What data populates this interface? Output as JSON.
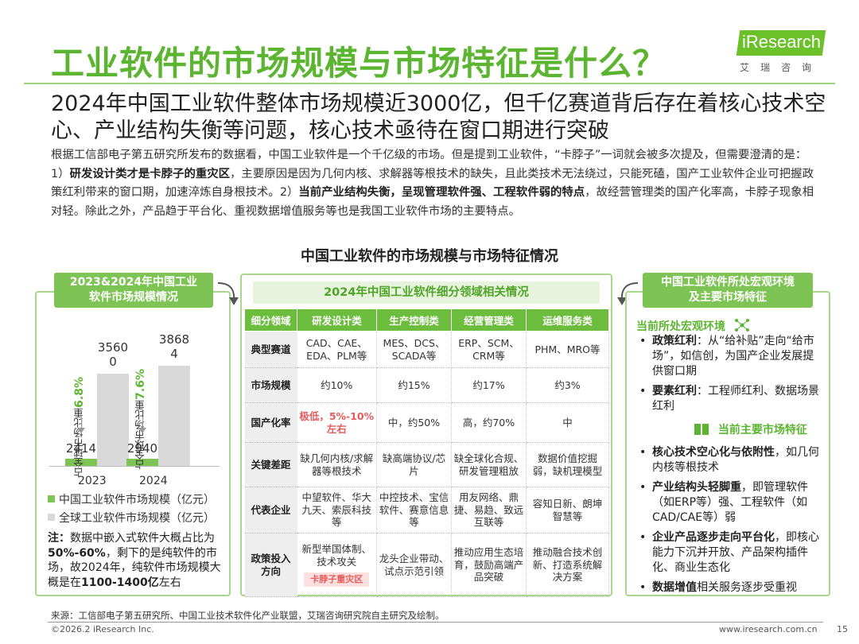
{
  "title": "工业软件的市场规模与市场特征是什么？",
  "logo": {
    "text": "iResearch",
    "sub": "艾瑞咨询"
  },
  "headline": "2024年中国工业软件整体市场规模近3000亿，但千亿赛道背后存在着核心技术空心、产业结构失衡等问题，核心技术亟待在窗口期进行突破",
  "intro": {
    "p1": "根据工信部电子第五研究所发布的数据看，中国工业软件是一个千亿级的市场。但是提到工业软件，“卡脖子”一词就会被多次提及，但需要澄清的是：1）",
    "b1": "研发设计类才是卡脖子的重灾区",
    "p2": "，主要原因是因为几何内核、求解器等根技术的缺失，且此类技术无法绕过，只能死磕，国产工业软件企业可把握政策红利带来的窗口期，加速淬炼自身根技术。2）",
    "b2": "当前产业结构失衡，呈现管理软件强、工程软件弱的特点",
    "p3": "，故经营管理类的国产化率高，卡脖子现象相对轻。除此之外，产品趋于平台化、重视数据增值服务等也是我国工业软件市场的主要特点。"
  },
  "chart_title": "中国工业软件的市场规模与市场特征情况",
  "left_panel": {
    "header_line1": "2023&2024年中国工业",
    "header_line2": "软件市场规模情况",
    "note_label": "注：",
    "note_text1": "数据中嵌入式软件大概占比为",
    "note_bold1": "50%-60%",
    "note_text2": "，剩下的是纯软件的市场，故2024年，纯软件市场规模大概是在",
    "note_bold2": "1100-1400亿",
    "note_text3": "左右"
  },
  "chart_data": {
    "type": "bar",
    "categories": [
      "2023",
      "2024"
    ],
    "series": [
      {
        "name": "中国工业软件市场规模（亿元）",
        "values": [
          2414,
          2940
        ],
        "color": "#7dc454"
      },
      {
        "name": "全球工业软件市场规模（亿元）",
        "values": [
          35600,
          38684
        ],
        "color": "#d9d9d9"
      }
    ],
    "value_labels": {
      "china": [
        "2414",
        "2940"
      ],
      "global_line1": [
        "3560",
        "3868"
      ],
      "global_line2": [
        "0",
        "4"
      ]
    },
    "share_labels": [
      {
        "prefix": "占全球市场比重",
        "pct": "6.8%"
      },
      {
        "prefix": "占全球市场比重",
        "pct": "7.6%"
      }
    ]
  },
  "middle_panel": {
    "title": "2024年中国工业软件细分领域相关情况",
    "headers": [
      "细分领域",
      "研发设计类",
      "生产控制类",
      "经营管理类",
      "运维服务类"
    ],
    "rows": [
      {
        "label": "典型赛道",
        "cells": [
          "CAD、CAE、EDA、PLM等",
          "MES、DCS、SCADA等",
          "ERP、SCM、CRM等",
          "PHM、MRO等"
        ]
      },
      {
        "label": "市场规模",
        "cells": [
          "约10%",
          "约15%",
          "约17%",
          "约3%"
        ]
      },
      {
        "label": "国产化率",
        "cells": [
          "极低，5%-10%左右",
          "中，约50%",
          "高，约70%",
          "中"
        ]
      },
      {
        "label": "关键差距",
        "cells": [
          "缺几何内核/求解器等根技术",
          "缺高端协议/芯片",
          "缺全球化合规、研发管理粗放",
          "数据价值挖掘弱，缺机理模型"
        ]
      },
      {
        "label": "代表企业",
        "cells": [
          "中望软件、华大九天、索辰科技等",
          "中控技术、宝信软件、赛意信息等",
          "用友网络、鼎捷、易趋、致远互联等",
          "容知日新、朗坤智慧等"
        ]
      },
      {
        "label": "政策投入方向",
        "cells": [
          "新型举国体制、技术攻关",
          "龙头企业带动、试点示范引领",
          "推动应用生态培育，鼓励高端产品突破",
          "推动融合技术创新、打造系统解决方案"
        ]
      }
    ],
    "tag": "卡脖子重灾区"
  },
  "right_panel": {
    "header_line1": "中国工业软件所处宏观环境",
    "header_line2": "及主要市场特征",
    "sub1": "当前所处宏观环境",
    "sub2": "当前主要市场特征",
    "env_items": [
      {
        "bold": "政策红利",
        "text": "：从“给补贴”走向“给市场”，如信创，为国产企业发展提供窗口期"
      },
      {
        "bold": "要素红利",
        "text": "：工程师红利、数据场景红利"
      }
    ],
    "feature_items": [
      {
        "bold": "核心技术空心化与依附性",
        "text": "，如几何内核等根技术"
      },
      {
        "bold": "产业结构头轻脚重",
        "text": "，即管理软件（如ERP等）强、工程软件（如CAD/CAE等）弱"
      },
      {
        "bold": "企业产品逐步走向平台化",
        "text": "，即核心能力下沉并开放、产品架构插件化、商业生态化"
      },
      {
        "bold": "数据增值",
        "text": "相关服务逐步受重视"
      }
    ]
  },
  "footer": {
    "source": "来源：工信部电子第五研究所、中国工业技术软件化产业联盟，艾瑞咨询研究院自主研究及绘制。",
    "copyright": "©2026.2 iResearch Inc.",
    "site": "www.iresearch.com.cn",
    "page": "15"
  }
}
